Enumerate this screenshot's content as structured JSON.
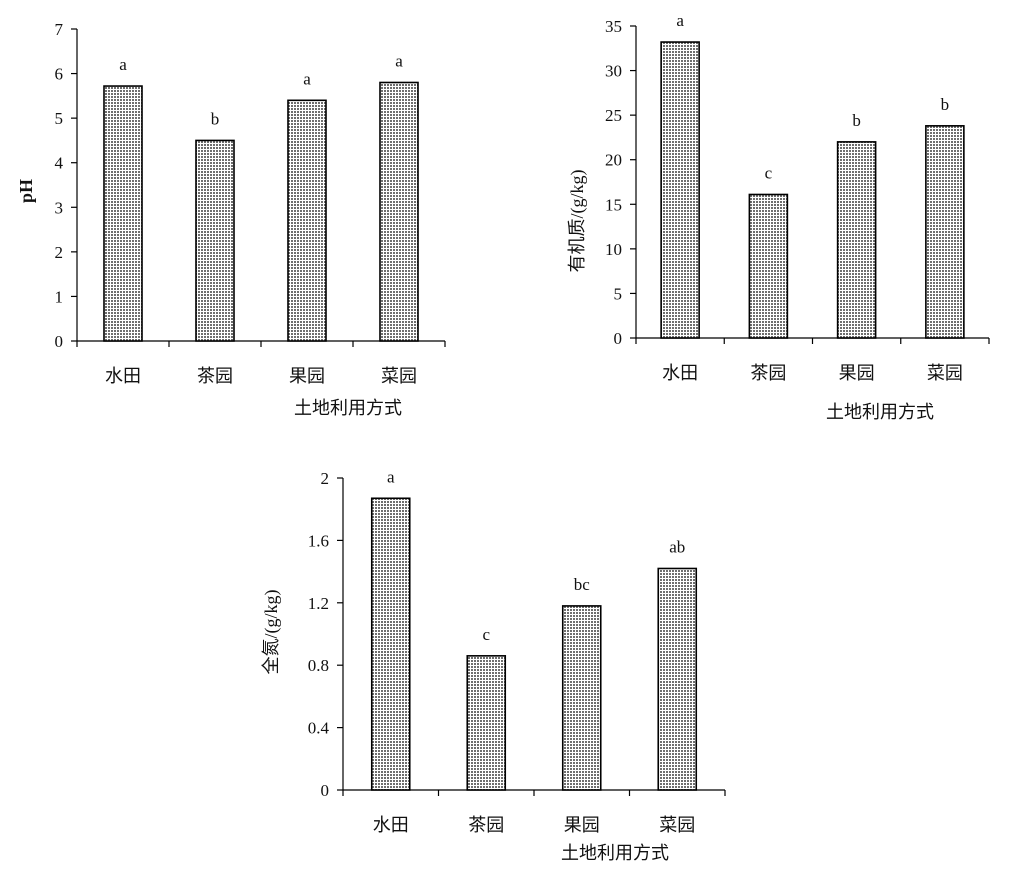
{
  "pattern_color": "#6e6e6e",
  "axis_color": "#000000",
  "chart_data": [
    {
      "id": "ph",
      "type": "bar",
      "categories": [
        "水田",
        "茶园",
        "果园",
        "菜园"
      ],
      "values": [
        5.72,
        4.5,
        5.4,
        5.8
      ],
      "labels": [
        "a",
        "b",
        "a",
        "a"
      ],
      "ylabel": "pH",
      "xlabel": "土地利用方式",
      "ylim": [
        0,
        7
      ],
      "yticks": [
        "0",
        "1",
        "2",
        "3",
        "4",
        "5",
        "6",
        "7"
      ]
    },
    {
      "id": "om",
      "type": "bar",
      "categories": [
        "水田",
        "茶园",
        "果园",
        "菜园"
      ],
      "values": [
        33.2,
        16.1,
        22.0,
        23.8
      ],
      "labels": [
        "a",
        "c",
        "b",
        "b"
      ],
      "ylabel": "有机质/(g/kg)",
      "xlabel": "土地利用方式",
      "ylim": [
        0,
        35
      ],
      "yticks": [
        "0",
        "5",
        "10",
        "15",
        "20",
        "25",
        "30",
        "35"
      ]
    },
    {
      "id": "tn",
      "type": "bar",
      "categories": [
        "水田",
        "茶园",
        "果园",
        "菜园"
      ],
      "values": [
        1.87,
        0.86,
        1.18,
        1.42
      ],
      "labels": [
        "a",
        "c",
        "bc",
        "ab"
      ],
      "ylabel": "全氮/(g/kg)",
      "xlabel": "土地利用方式",
      "ylim": [
        0,
        2
      ],
      "yticks": [
        "0",
        "0.4",
        "0.8",
        "1.2",
        "1.6",
        "2"
      ]
    }
  ]
}
